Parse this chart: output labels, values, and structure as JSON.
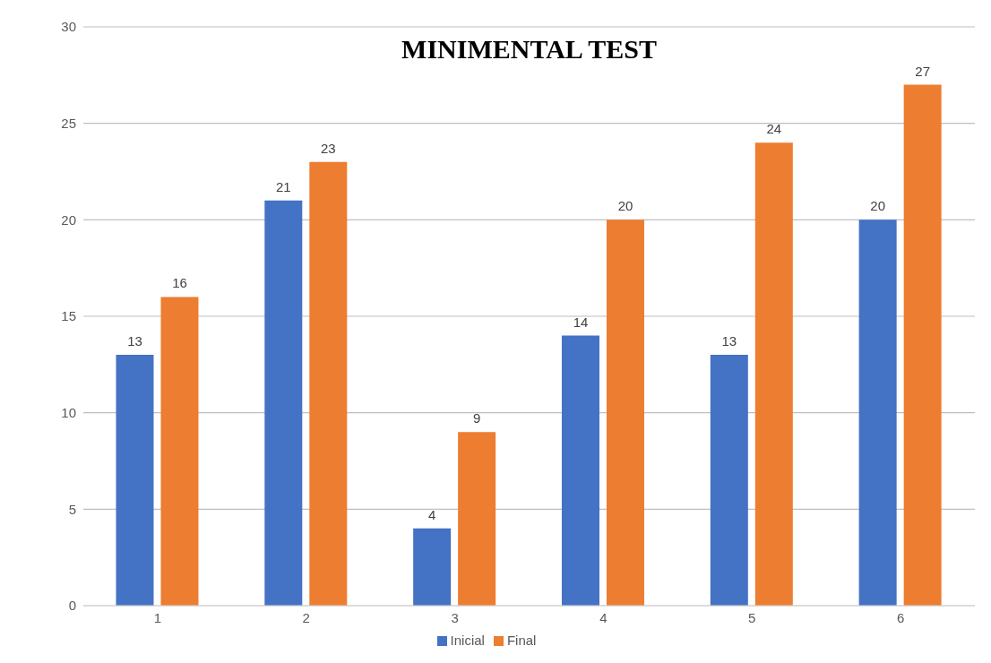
{
  "chart_data": {
    "type": "bar",
    "title": "MINIMENTAL TEST",
    "categories": [
      "1",
      "2",
      "3",
      "4",
      "5",
      "6"
    ],
    "series": [
      {
        "name": "Inicial",
        "color": "#4472c4",
        "values": [
          13,
          21,
          4,
          14,
          13,
          20
        ]
      },
      {
        "name": "Final",
        "color": "#ed7d31",
        "values": [
          16,
          23,
          9,
          20,
          24,
          27
        ]
      }
    ],
    "ylim": [
      0,
      30
    ],
    "yticks": [
      0,
      5,
      10,
      15,
      20,
      25,
      30
    ],
    "grid": "y",
    "legend": "bottom",
    "data_labels": true
  }
}
